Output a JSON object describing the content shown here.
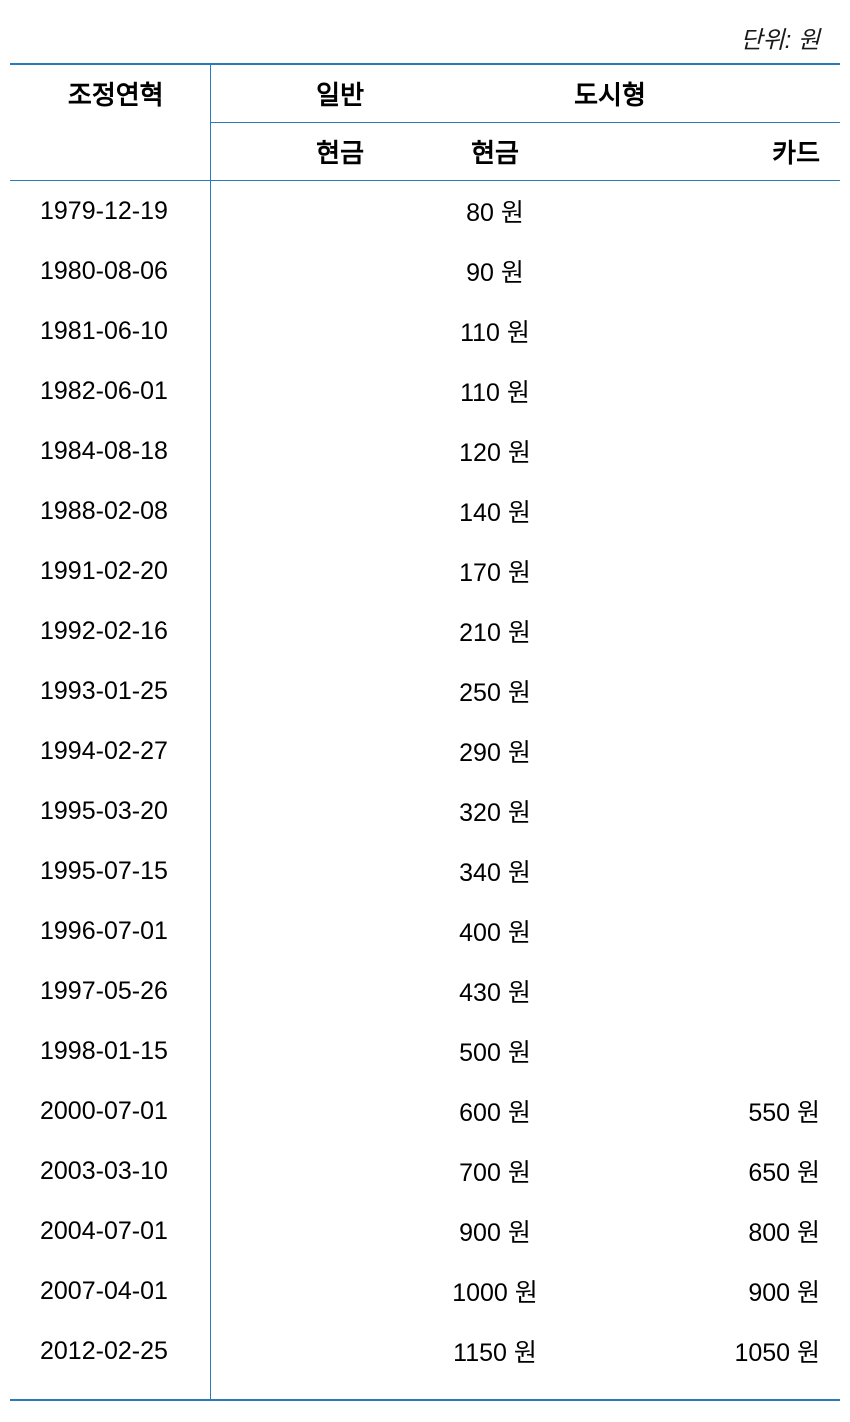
{
  "unit_label": "단위: 원",
  "headers": {
    "col1": "조정연혁",
    "col2_group": "일반",
    "col3_group": "도시형",
    "sub_cash": "현금",
    "sub_card": "카드"
  },
  "value_suffix": " 원",
  "rows": [
    {
      "date": "1979-12-19",
      "general_cash": "",
      "city_cash": "80",
      "city_card": ""
    },
    {
      "date": "1980-08-06",
      "general_cash": "",
      "city_cash": "90",
      "city_card": ""
    },
    {
      "date": "1981-06-10",
      "general_cash": "",
      "city_cash": "110",
      "city_card": ""
    },
    {
      "date": "1982-06-01",
      "general_cash": "",
      "city_cash": "110",
      "city_card": ""
    },
    {
      "date": "1984-08-18",
      "general_cash": "",
      "city_cash": "120",
      "city_card": ""
    },
    {
      "date": "1988-02-08",
      "general_cash": "",
      "city_cash": "140",
      "city_card": ""
    },
    {
      "date": "1991-02-20",
      "general_cash": "",
      "city_cash": "170",
      "city_card": ""
    },
    {
      "date": "1992-02-16",
      "general_cash": "",
      "city_cash": "210",
      "city_card": ""
    },
    {
      "date": "1993-01-25",
      "general_cash": "",
      "city_cash": "250",
      "city_card": ""
    },
    {
      "date": "1994-02-27",
      "general_cash": "",
      "city_cash": "290",
      "city_card": ""
    },
    {
      "date": "1995-03-20",
      "general_cash": "",
      "city_cash": "320",
      "city_card": ""
    },
    {
      "date": "1995-07-15",
      "general_cash": "",
      "city_cash": "340",
      "city_card": ""
    },
    {
      "date": "1996-07-01",
      "general_cash": "",
      "city_cash": "400",
      "city_card": ""
    },
    {
      "date": "1997-05-26",
      "general_cash": "",
      "city_cash": "430",
      "city_card": ""
    },
    {
      "date": "1998-01-15",
      "general_cash": "",
      "city_cash": "500",
      "city_card": ""
    },
    {
      "date": "2000-07-01",
      "general_cash": "",
      "city_cash": "600",
      "city_card": "550"
    },
    {
      "date": "2003-03-10",
      "general_cash": "",
      "city_cash": "700",
      "city_card": "650"
    },
    {
      "date": "2004-07-01",
      "general_cash": "",
      "city_cash": "900",
      "city_card": "800"
    },
    {
      "date": "2007-04-01",
      "general_cash": "",
      "city_cash": "1000",
      "city_card": "900"
    },
    {
      "date": "2012-02-25",
      "general_cash": "",
      "city_cash": "1150",
      "city_card": "1050"
    }
  ],
  "colors": {
    "border": "#2b7bb8",
    "text": "#000000",
    "background": "#ffffff"
  }
}
